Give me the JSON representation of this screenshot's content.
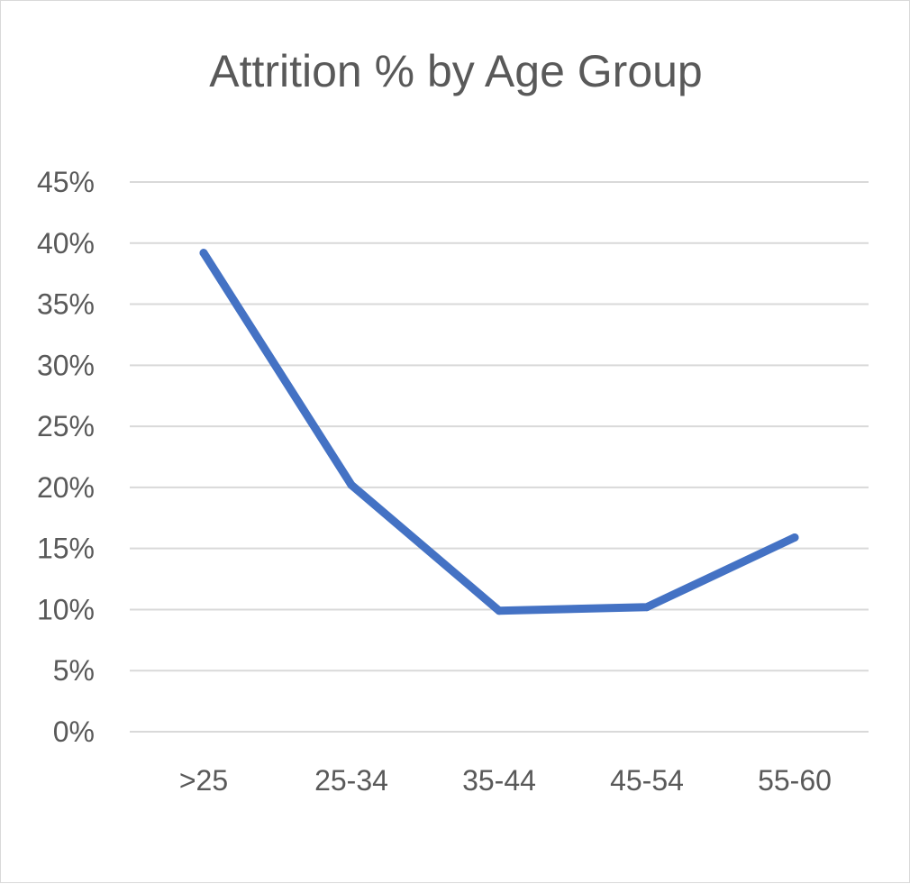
{
  "chart_data": {
    "type": "line",
    "title": "Attrition % by Age Group",
    "xlabel": "",
    "ylabel": "",
    "categories": [
      ">25",
      "25-34",
      "35-44",
      "45-54",
      "55-60"
    ],
    "series": [
      {
        "values": [
          39.2,
          20.2,
          9.9,
          10.2,
          15.9
        ]
      }
    ],
    "ylim": [
      0,
      45
    ],
    "y_ticks": [
      0,
      5,
      10,
      15,
      20,
      25,
      30,
      35,
      40,
      45
    ],
    "y_tick_labels": [
      "0%",
      "5%",
      "10%",
      "15%",
      "20%",
      "25%",
      "30%",
      "35%",
      "40%",
      "45%"
    ],
    "grid": "horizontal",
    "legend": "none",
    "colors": {
      "line": "#4472C4",
      "grid": "#d9d9d9",
      "text": "#595959"
    }
  }
}
